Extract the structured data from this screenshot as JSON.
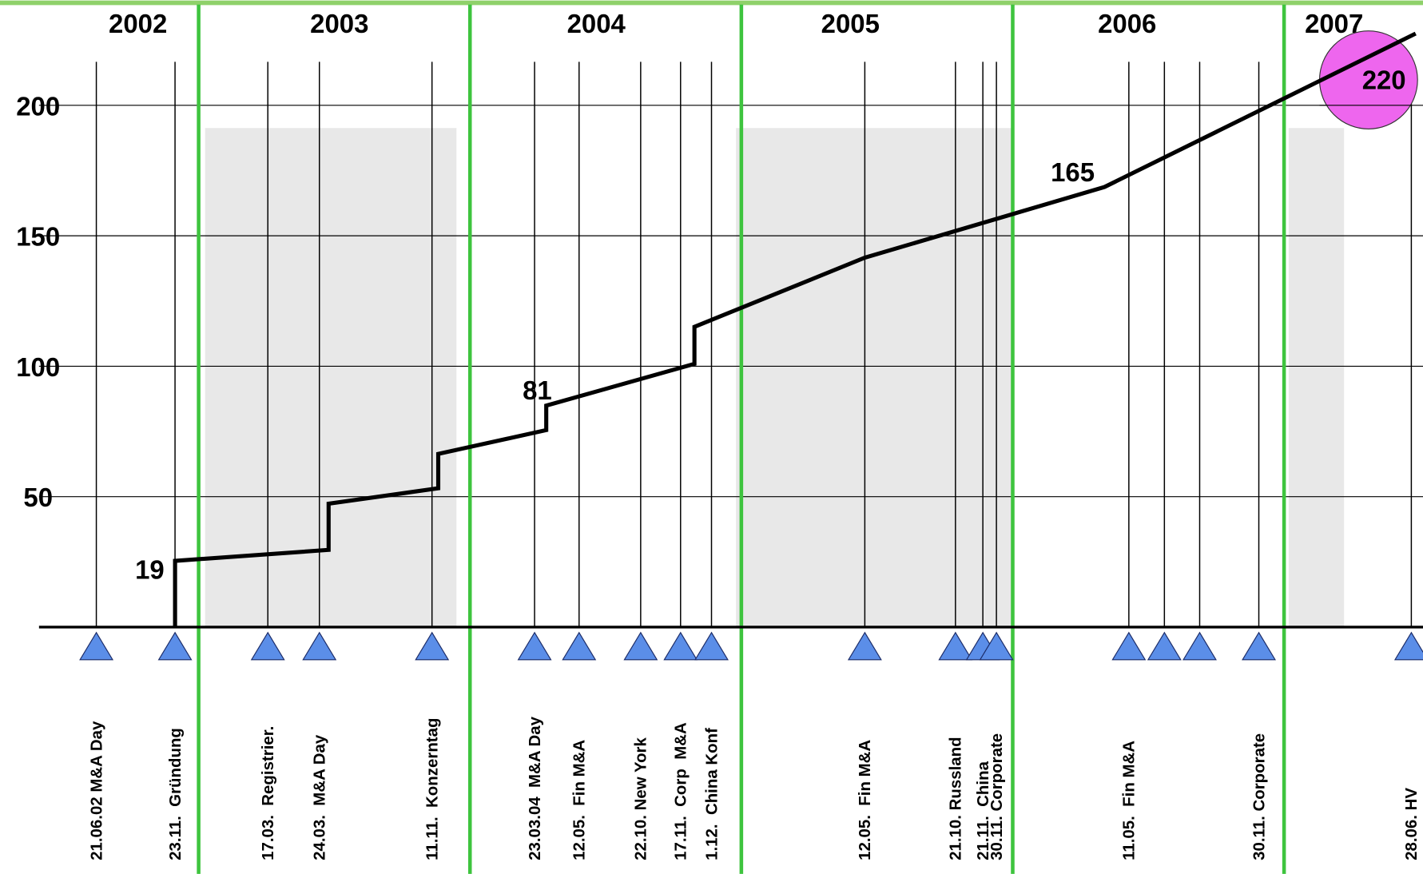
{
  "chart_data": {
    "type": "line",
    "year_labels": [
      "2002",
      "2003",
      "2004",
      "2005",
      "2006",
      "2007"
    ],
    "year_boundaries": [
      2003,
      2004,
      2005,
      2006,
      2007
    ],
    "xlim": [
      2002.268,
      2007.512
    ],
    "ylim": [
      0,
      240
    ],
    "yticks": [
      50,
      100,
      150,
      200
    ],
    "grid": true,
    "series": [
      {
        "color": "#000000",
        "x": [
          2002.913,
          2002.913,
          2003.479,
          2003.479,
          2003.883,
          2003.883,
          2004.281,
          2004.281,
          2004.827,
          2004.827,
          2005.455,
          2006.338,
          2007.485
        ],
        "values": [
          0,
          25.4,
          29.6,
          47.3,
          53.2,
          66.4,
          75.5,
          84.9,
          100.9,
          115.1,
          141.6,
          168.7,
          227.5
        ]
      }
    ],
    "annotations": [
      "19",
      "81",
      "165",
      "220"
    ],
    "events": {
      "x": [
        2002.623,
        2002.913,
        2003.255,
        2003.445,
        2003.86,
        2004.238,
        2004.402,
        2004.629,
        2004.776,
        2004.89,
        2005.455,
        2005.789,
        2005.89,
        2005.94,
        2006.428,
        2006.559,
        2006.689,
        2006.907,
        2007.469
      ],
      "labels": [
        "21.06.02 M&A Day",
        "23.11.  Gründung",
        "17.03.  Registrier.",
        "24.03.  M&A Day",
        "11.11.  Konzerntag",
        "23.03.04  M&A Day",
        "12.05.  Fin M&A",
        "22.10. New York",
        "17.11.  Corp  M&A",
        "1.12.  China Konf",
        "12.05.  Fin M&A",
        "21.10. Russland",
        "21.11.  China",
        "30.11. Corporate",
        "11.05.  Fin M&A",
        null,
        null,
        "30.11. Corporate",
        "28.06. HV"
      ]
    }
  }
}
